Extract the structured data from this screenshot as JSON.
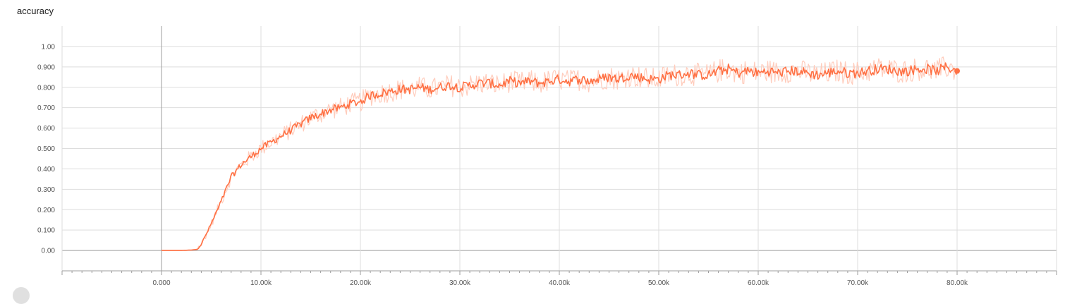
{
  "chart_data": {
    "type": "line",
    "title": "accuracy",
    "xlabel": "",
    "ylabel": "",
    "xlim": [
      -10000,
      90000
    ],
    "ylim": [
      -0.1,
      1.1
    ],
    "x_ticks": [
      0,
      10000,
      20000,
      30000,
      40000,
      50000,
      60000,
      70000,
      80000
    ],
    "x_tick_labels": [
      "0.000",
      "10.00k",
      "20.00k",
      "30.00k",
      "40.00k",
      "50.00k",
      "60.00k",
      "70.00k",
      "80.00k"
    ],
    "y_ticks": [
      0,
      0.1,
      0.2,
      0.3,
      0.4,
      0.5,
      0.6,
      0.7,
      0.8,
      0.9,
      1.0
    ],
    "y_tick_labels": [
      "0.00",
      "0.100",
      "0.200",
      "0.300",
      "0.400",
      "0.500",
      "0.600",
      "0.700",
      "0.800",
      "0.900",
      "1.00"
    ],
    "grid": true,
    "series": [
      {
        "color": "#ff7043",
        "raw_color": "#ffccbc",
        "x": [
          0,
          1000,
          2000,
          3000,
          3500,
          4000,
          5000,
          6000,
          7000,
          8000,
          9000,
          10000,
          11000,
          12000,
          13000,
          14000,
          15000,
          16000,
          17000,
          18000,
          19000,
          20000,
          21000,
          22000,
          23000,
          24000,
          25000,
          26000,
          27000,
          28000,
          29000,
          30000,
          31000,
          32000,
          33000,
          34000,
          35000,
          36000,
          37000,
          38000,
          39000,
          40000,
          41000,
          42000,
          43000,
          44000,
          45000,
          46000,
          47000,
          48000,
          49000,
          50000,
          51000,
          52000,
          53000,
          54000,
          55000,
          56000,
          57000,
          58000,
          59000,
          60000,
          61000,
          62000,
          63000,
          64000,
          65000,
          66000,
          67000,
          68000,
          69000,
          70000,
          71000,
          72000,
          73000,
          74000,
          75000,
          76000,
          77000,
          78000,
          79000,
          80000
        ],
        "values": [
          0,
          0,
          0,
          0.002,
          0.005,
          0.03,
          0.13,
          0.24,
          0.36,
          0.42,
          0.46,
          0.5,
          0.53,
          0.56,
          0.59,
          0.62,
          0.65,
          0.67,
          0.69,
          0.7,
          0.72,
          0.73,
          0.76,
          0.77,
          0.78,
          0.79,
          0.79,
          0.8,
          0.79,
          0.8,
          0.81,
          0.8,
          0.81,
          0.82,
          0.82,
          0.81,
          0.83,
          0.82,
          0.83,
          0.82,
          0.83,
          0.84,
          0.83,
          0.84,
          0.83,
          0.84,
          0.85,
          0.84,
          0.86,
          0.85,
          0.84,
          0.84,
          0.86,
          0.86,
          0.87,
          0.86,
          0.86,
          0.88,
          0.89,
          0.87,
          0.88,
          0.87,
          0.88,
          0.87,
          0.88,
          0.88,
          0.87,
          0.86,
          0.87,
          0.88,
          0.87,
          0.87,
          0.88,
          0.89,
          0.89,
          0.88,
          0.88,
          0.89,
          0.89,
          0.88,
          0.9,
          0.88
        ]
      }
    ]
  }
}
